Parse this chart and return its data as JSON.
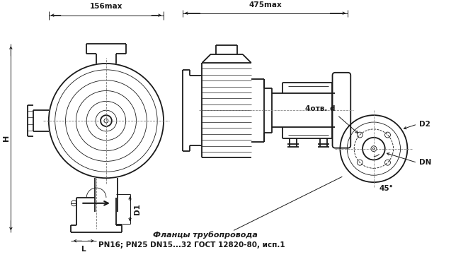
{
  "bg_color": "#ffffff",
  "line_color": "#1a1a1a",
  "fig_width": 6.61,
  "fig_height": 3.64,
  "dpi": 100,
  "text_label1": "156max",
  "text_label2": "475max",
  "text_H": "H",
  "text_D1": "D1",
  "text_L": "L",
  "text_4otv": "4отв. d",
  "text_D2": "D2",
  "text_DN": "DN",
  "text_45": "45°",
  "text_flanges": "Фланцы трубопровода",
  "text_pn": "PN16; PN25 DN15...32 ГОСТ 12820-80, исп.1"
}
